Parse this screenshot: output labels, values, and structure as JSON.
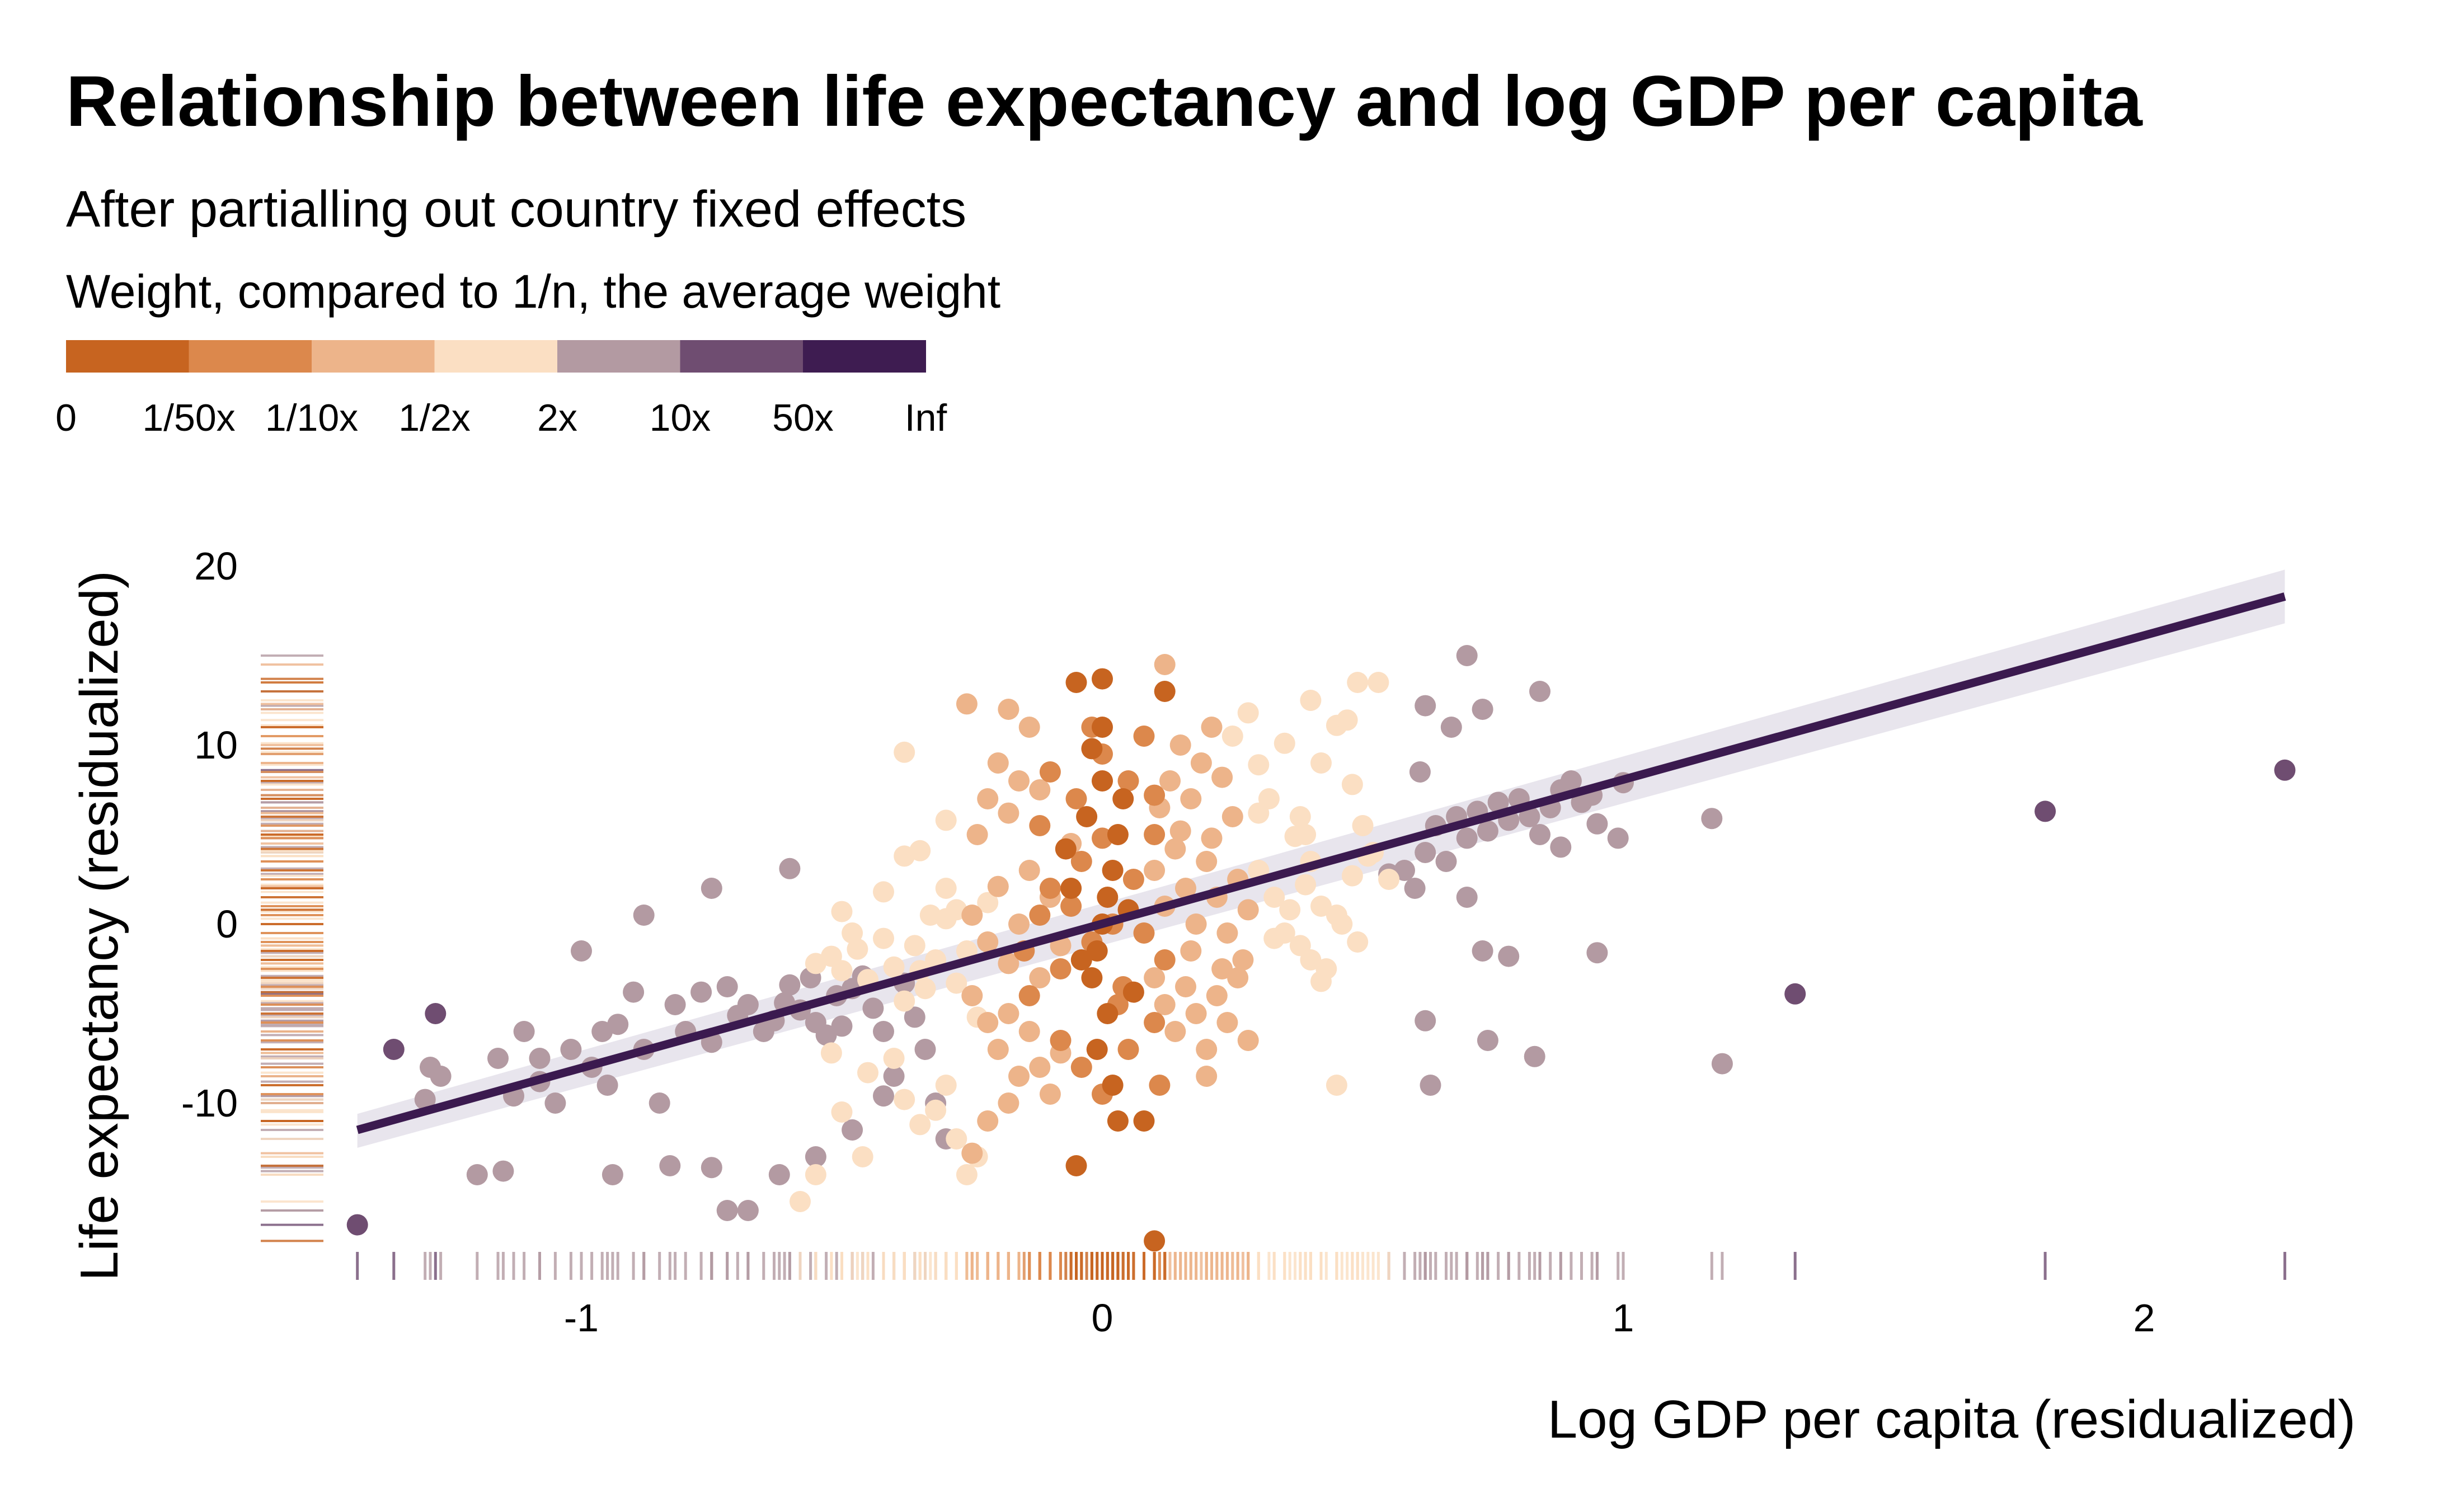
{
  "chart_data": {
    "type": "scatter",
    "title": "Relationship between life expectancy and log GDP per capita",
    "subtitle": "After partialling out country fixed effects",
    "xlabel": "Log GDP per capita (residualized)",
    "ylabel": "Life expectancy (residualized)",
    "xlim": [
      -1.45,
      2.28
    ],
    "ylim": [
      -18.3,
      20.0
    ],
    "x_ticks": [
      -1,
      0,
      1,
      2
    ],
    "x_tick_labels": [
      "-1",
      "0",
      "1",
      "2"
    ],
    "y_ticks": [
      -10,
      0,
      10,
      20
    ],
    "y_tick_labels": [
      "-10",
      "0",
      "10",
      "20"
    ],
    "grid": false,
    "fit_line": {
      "x": [
        -1.43,
        2.27
      ],
      "y": [
        -11.5,
        18.3
      ],
      "band_low": [
        -12.5,
        16.8
      ],
      "band_high": [
        -10.6,
        19.8
      ],
      "color": "#3b1a4f",
      "band_color": "#e4e0ea"
    },
    "legend": {
      "title": "Weight, compared to 1/n, the average weight",
      "labels": [
        "0",
        "1/50x",
        "1/10x",
        "1/2x",
        "2x",
        "10x",
        "50x",
        "Inf"
      ],
      "colors": [
        "#c76420",
        "#dc884c",
        "#edb48a",
        "#fbdfc3",
        "#b39aa2",
        "#6f4d71",
        "#3e1c51"
      ]
    },
    "points": [
      [
        -1.43,
        -16.8,
        5
      ],
      [
        -1.36,
        -7.0,
        5
      ],
      [
        -1.28,
        -5.0,
        5
      ],
      [
        1.33,
        -3.9,
        5
      ],
      [
        1.81,
        6.3,
        5
      ],
      [
        2.27,
        8.6,
        5
      ],
      [
        -1.3,
        -9.8,
        4
      ],
      [
        -1.29,
        -8.0,
        4
      ],
      [
        -1.27,
        -8.5,
        4
      ],
      [
        -1.2,
        -14.0,
        4
      ],
      [
        -1.16,
        -7.5,
        4
      ],
      [
        -1.13,
        -9.6,
        4
      ],
      [
        -1.11,
        -6.0,
        4
      ],
      [
        -1.08,
        -7.5,
        4
      ],
      [
        -1.05,
        -10.0,
        4
      ],
      [
        -1.02,
        -7.0,
        4
      ],
      [
        -1.0,
        -1.5,
        4
      ],
      [
        -0.98,
        -8.0,
        4
      ],
      [
        -0.96,
        -6.0,
        4
      ],
      [
        -0.93,
        -5.6,
        4
      ],
      [
        -0.9,
        -3.8,
        4
      ],
      [
        -0.88,
        -7.0,
        4
      ],
      [
        -0.85,
        -10.0,
        4
      ],
      [
        -0.82,
        -4.5,
        4
      ],
      [
        -0.8,
        -6.0,
        4
      ],
      [
        -0.77,
        -3.8,
        4
      ],
      [
        -0.75,
        -6.6,
        4
      ],
      [
        -0.72,
        -3.5,
        4
      ],
      [
        -0.7,
        -5.1,
        4
      ],
      [
        -0.68,
        -4.5,
        4
      ],
      [
        -0.65,
        -6.0,
        4
      ],
      [
        -0.63,
        -5.4,
        4
      ],
      [
        -0.61,
        -4.4,
        4
      ],
      [
        -0.6,
        -3.4,
        4
      ],
      [
        -0.58,
        -4.8,
        4
      ],
      [
        -0.56,
        -3.0,
        4
      ],
      [
        -0.55,
        -5.5,
        4
      ],
      [
        -0.53,
        -6.2,
        4
      ],
      [
        -0.51,
        -4.0,
        4
      ],
      [
        -0.5,
        -5.7,
        4
      ],
      [
        -0.48,
        -3.6,
        4
      ],
      [
        -0.46,
        -2.9,
        4
      ],
      [
        -0.44,
        -4.7,
        4
      ],
      [
        -0.42,
        -6.0,
        4
      ],
      [
        -0.4,
        -8.5,
        4
      ],
      [
        -0.38,
        -3.3,
        4
      ],
      [
        -0.36,
        -5.2,
        4
      ],
      [
        -0.34,
        -7.0,
        4
      ],
      [
        -0.32,
        -10.0,
        4
      ],
      [
        -0.3,
        -12.0,
        4
      ],
      [
        -0.75,
        -13.6,
        4
      ],
      [
        -0.72,
        -16.0,
        4
      ],
      [
        -0.68,
        -16.0,
        4
      ],
      [
        -0.62,
        -14.0,
        4
      ],
      [
        -0.55,
        -13.0,
        4
      ],
      [
        -0.48,
        -11.5,
        4
      ],
      [
        -0.42,
        -9.6,
        4
      ],
      [
        -0.6,
        3.1,
        4
      ],
      [
        -0.75,
        2.0,
        4
      ],
      [
        -0.88,
        0.5,
        4
      ],
      [
        -1.15,
        -13.8,
        4
      ],
      [
        -0.94,
        -14.0,
        4
      ],
      [
        -0.83,
        -13.5,
        4
      ],
      [
        -1.08,
        -8.8,
        4
      ],
      [
        -0.95,
        -9.0,
        4
      ],
      [
        0.58,
        3.0,
        4
      ],
      [
        0.6,
        2.0,
        4
      ],
      [
        0.62,
        4.0,
        4
      ],
      [
        0.64,
        5.5,
        4
      ],
      [
        0.66,
        3.5,
        4
      ],
      [
        0.68,
        6.0,
        4
      ],
      [
        0.7,
        4.8,
        4
      ],
      [
        0.72,
        6.3,
        4
      ],
      [
        0.74,
        5.2,
        4
      ],
      [
        0.76,
        6.8,
        4
      ],
      [
        0.78,
        5.8,
        4
      ],
      [
        0.8,
        7.0,
        4
      ],
      [
        0.82,
        6.0,
        4
      ],
      [
        0.84,
        5.0,
        4
      ],
      [
        0.86,
        6.5,
        4
      ],
      [
        0.88,
        7.5,
        4
      ],
      [
        0.9,
        8.0,
        4
      ],
      [
        0.92,
        6.8,
        4
      ],
      [
        0.94,
        7.2,
        4
      ],
      [
        0.7,
        15.0,
        4
      ],
      [
        0.62,
        12.2,
        4
      ],
      [
        0.67,
        11.0,
        4
      ],
      [
        0.73,
        12.0,
        4
      ],
      [
        0.84,
        13.0,
        4
      ],
      [
        0.61,
        8.5,
        4
      ],
      [
        0.55,
        2.8,
        4
      ],
      [
        0.7,
        1.5,
        4
      ],
      [
        0.73,
        -1.5,
        4
      ],
      [
        0.78,
        -1.8,
        4
      ],
      [
        0.95,
        -1.6,
        4
      ],
      [
        0.62,
        -5.4,
        4
      ],
      [
        0.74,
        -6.5,
        4
      ],
      [
        0.83,
        -7.4,
        4
      ],
      [
        0.63,
        -9.0,
        4
      ],
      [
        1.0,
        7.9,
        4
      ],
      [
        0.99,
        4.8,
        4
      ],
      [
        1.17,
        5.9,
        4
      ],
      [
        1.19,
        -7.8,
        4
      ],
      [
        0.95,
        5.6,
        4
      ],
      [
        0.88,
        4.3,
        4
      ],
      [
        -0.55,
        -2.2,
        3
      ],
      [
        -0.52,
        -1.8,
        3
      ],
      [
        -0.5,
        -2.6,
        3
      ],
      [
        -0.47,
        -1.4,
        3
      ],
      [
        -0.45,
        -3.1,
        3
      ],
      [
        -0.42,
        -0.8,
        3
      ],
      [
        -0.4,
        -2.4,
        3
      ],
      [
        -0.38,
        -4.3,
        3
      ],
      [
        -0.36,
        -1.2,
        3
      ],
      [
        -0.34,
        -3.6,
        3
      ],
      [
        -0.32,
        -2.0,
        3
      ],
      [
        -0.3,
        0.3,
        3
      ],
      [
        -0.28,
        -3.3,
        3
      ],
      [
        -0.26,
        -1.5,
        3
      ],
      [
        -0.24,
        -5.2,
        3
      ],
      [
        -0.22,
        1.2,
        3
      ],
      [
        -0.4,
        -7.5,
        3
      ],
      [
        -0.38,
        -9.8,
        3
      ],
      [
        -0.35,
        -11.2,
        3
      ],
      [
        -0.32,
        -10.4,
        3
      ],
      [
        -0.3,
        -9.0,
        3
      ],
      [
        -0.28,
        -12.0,
        3
      ],
      [
        -0.26,
        -14.0,
        3
      ],
      [
        -0.24,
        -13.0,
        3
      ],
      [
        -0.45,
        -8.3,
        3
      ],
      [
        -0.5,
        -10.5,
        3
      ],
      [
        -0.52,
        -7.2,
        3
      ],
      [
        -0.55,
        -14.0,
        3
      ],
      [
        -0.46,
        -13.0,
        3
      ],
      [
        -0.58,
        -15.5,
        3
      ],
      [
        -0.42,
        1.8,
        3
      ],
      [
        -0.38,
        3.8,
        3
      ],
      [
        -0.35,
        4.1,
        3
      ],
      [
        -0.3,
        2.0,
        3
      ],
      [
        -0.28,
        0.8,
        3
      ],
      [
        -0.38,
        9.6,
        3
      ],
      [
        -0.3,
        5.8,
        3
      ],
      [
        -0.5,
        0.7,
        3
      ],
      [
        -0.48,
        -0.5,
        3
      ],
      [
        0.3,
        8.9,
        3
      ],
      [
        0.35,
        10.1,
        3
      ],
      [
        0.32,
        7.0,
        3
      ],
      [
        0.38,
        6.0,
        3
      ],
      [
        0.4,
        3.5,
        3
      ],
      [
        0.42,
        9.0,
        3
      ],
      [
        0.45,
        11.1,
        3
      ],
      [
        0.48,
        7.8,
        3
      ],
      [
        0.5,
        5.5,
        3
      ],
      [
        0.52,
        4.0,
        3
      ],
      [
        0.55,
        2.5,
        3
      ],
      [
        0.3,
        3.0,
        3
      ],
      [
        0.33,
        1.5,
        3
      ],
      [
        0.36,
        0.8,
        3
      ],
      [
        0.39,
        2.2,
        3
      ],
      [
        0.42,
        1.0,
        3
      ],
      [
        0.45,
        0.5,
        3
      ],
      [
        0.48,
        2.7,
        3
      ],
      [
        0.51,
        3.8,
        3
      ],
      [
        0.35,
        -0.5,
        3
      ],
      [
        0.38,
        -1.2,
        3
      ],
      [
        0.4,
        -2.0,
        3
      ],
      [
        0.42,
        -3.2,
        3
      ],
      [
        0.46,
        0.0,
        3
      ],
      [
        0.49,
        -1.0,
        3
      ],
      [
        0.43,
        -2.5,
        3
      ],
      [
        0.37,
        4.9,
        3
      ],
      [
        0.4,
        12.5,
        3
      ],
      [
        0.49,
        13.5,
        3
      ],
      [
        0.53,
        13.5,
        3
      ],
      [
        0.47,
        11.4,
        3
      ],
      [
        0.45,
        -9.0,
        3
      ],
      [
        0.3,
        6.2,
        3
      ],
      [
        0.33,
        -0.8,
        3
      ],
      [
        0.25,
        10.5,
        3
      ],
      [
        0.28,
        11.8,
        3
      ],
      [
        -0.35,
        -2.6,
        3
      ],
      [
        -0.33,
        0.5,
        3
      ],
      [
        0.39,
        5.0,
        3
      ],
      [
        -0.25,
        0.5,
        2
      ],
      [
        -0.22,
        -1.0,
        2
      ],
      [
        -0.2,
        2.1,
        2
      ],
      [
        -0.18,
        -2.2,
        2
      ],
      [
        -0.16,
        0.0,
        2
      ],
      [
        -0.14,
        3.0,
        2
      ],
      [
        -0.12,
        -3.0,
        2
      ],
      [
        -0.1,
        1.5,
        2
      ],
      [
        -0.08,
        -1.2,
        2
      ],
      [
        -0.24,
        5.0,
        2
      ],
      [
        -0.22,
        7.0,
        2
      ],
      [
        -0.2,
        9.0,
        2
      ],
      [
        -0.18,
        6.2,
        2
      ],
      [
        -0.16,
        8.0,
        2
      ],
      [
        -0.14,
        11.0,
        2
      ],
      [
        -0.12,
        7.5,
        2
      ],
      [
        -0.26,
        12.3,
        2
      ],
      [
        -0.18,
        12.0,
        2
      ],
      [
        -0.25,
        -4.0,
        2
      ],
      [
        -0.22,
        -5.5,
        2
      ],
      [
        -0.2,
        -7.0,
        2
      ],
      [
        -0.18,
        -5.0,
        2
      ],
      [
        -0.16,
        -8.5,
        2
      ],
      [
        -0.14,
        -6.0,
        2
      ],
      [
        -0.12,
        -8.0,
        2
      ],
      [
        -0.1,
        -9.5,
        2
      ],
      [
        -0.08,
        -7.2,
        2
      ],
      [
        -0.25,
        -12.8,
        2
      ],
      [
        -0.22,
        -11.0,
        2
      ],
      [
        -0.18,
        -10.0,
        2
      ],
      [
        0.1,
        3.0,
        2
      ],
      [
        0.12,
        1.0,
        2
      ],
      [
        0.14,
        4.2,
        2
      ],
      [
        0.16,
        2.0,
        2
      ],
      [
        0.18,
        0.0,
        2
      ],
      [
        0.2,
        3.5,
        2
      ],
      [
        0.22,
        1.5,
        2
      ],
      [
        0.24,
        -0.5,
        2
      ],
      [
        0.26,
        2.5,
        2
      ],
      [
        0.28,
        0.8,
        2
      ],
      [
        0.11,
        6.5,
        2
      ],
      [
        0.13,
        8.0,
        2
      ],
      [
        0.15,
        10.0,
        2
      ],
      [
        0.17,
        7.0,
        2
      ],
      [
        0.19,
        9.0,
        2
      ],
      [
        0.21,
        11.0,
        2
      ],
      [
        0.23,
        8.2,
        2
      ],
      [
        0.12,
        14.5,
        2
      ],
      [
        0.1,
        -3.0,
        2
      ],
      [
        0.12,
        -4.5,
        2
      ],
      [
        0.14,
        -6.0,
        2
      ],
      [
        0.16,
        -3.5,
        2
      ],
      [
        0.18,
        -5.0,
        2
      ],
      [
        0.2,
        -7.0,
        2
      ],
      [
        0.22,
        -4.0,
        2
      ],
      [
        0.24,
        -5.5,
        2
      ],
      [
        0.26,
        -3.0,
        2
      ],
      [
        0.28,
        -6.5,
        2
      ],
      [
        0.2,
        -8.5,
        2
      ],
      [
        0.27,
        -2.0,
        2
      ],
      [
        0.15,
        5.2,
        2
      ],
      [
        0.21,
        4.8,
        2
      ],
      [
        0.25,
        6.0,
        2
      ],
      [
        0.17,
        -1.5,
        2
      ],
      [
        0.23,
        -2.5,
        2
      ],
      [
        -0.06,
        4.5,
        2
      ],
      [
        -0.15,
        -1.5,
        1
      ],
      [
        -0.12,
        0.5,
        1
      ],
      [
        -0.1,
        2.0,
        1
      ],
      [
        -0.08,
        -2.5,
        1
      ],
      [
        -0.06,
        1.0,
        1
      ],
      [
        -0.04,
        3.5,
        1
      ],
      [
        -0.02,
        -1.0,
        1
      ],
      [
        0.0,
        4.8,
        1
      ],
      [
        0.02,
        0.0,
        1
      ],
      [
        0.04,
        -3.5,
        1
      ],
      [
        0.06,
        2.5,
        1
      ],
      [
        0.08,
        -0.5,
        1
      ],
      [
        0.1,
        5.0,
        1
      ],
      [
        0.12,
        -2.0,
        1
      ],
      [
        -0.1,
        8.5,
        1
      ],
      [
        -0.05,
        7.0,
        1
      ],
      [
        0.0,
        9.5,
        1
      ],
      [
        0.05,
        8.0,
        1
      ],
      [
        0.1,
        7.2,
        1
      ],
      [
        -0.08,
        -6.5,
        1
      ],
      [
        -0.04,
        -8.0,
        1
      ],
      [
        0.0,
        -9.5,
        1
      ],
      [
        0.05,
        -7.0,
        1
      ],
      [
        0.1,
        -5.5,
        1
      ],
      [
        0.08,
        10.5,
        1
      ],
      [
        -0.12,
        5.5,
        1
      ],
      [
        0.11,
        -9.0,
        1
      ],
      [
        -0.02,
        11.0,
        1
      ],
      [
        0.03,
        -4.5,
        1
      ],
      [
        -0.14,
        -4.0,
        1
      ],
      [
        0.0,
        0.0,
        0
      ],
      [
        0.01,
        1.5,
        0
      ],
      [
        -0.01,
        -1.5,
        0
      ],
      [
        0.02,
        3.0,
        0
      ],
      [
        -0.02,
        -3.0,
        0
      ],
      [
        0.03,
        5.0,
        0
      ],
      [
        -0.03,
        6.0,
        0
      ],
      [
        0.0,
        8.0,
        0
      ],
      [
        0.01,
        -5.0,
        0
      ],
      [
        -0.01,
        -7.0,
        0
      ],
      [
        0.02,
        -9.0,
        0
      ],
      [
        0.0,
        11.0,
        0
      ],
      [
        -0.05,
        13.5,
        0
      ],
      [
        0.0,
        13.7,
        0
      ],
      [
        0.12,
        13.0,
        0
      ],
      [
        -0.05,
        -13.5,
        0
      ],
      [
        0.03,
        -11.0,
        0
      ],
      [
        0.1,
        -17.7,
        0
      ],
      [
        0.08,
        -11.0,
        0
      ],
      [
        -0.06,
        2.0,
        0
      ],
      [
        -0.04,
        -2.0,
        0
      ],
      [
        0.05,
        0.8,
        0
      ],
      [
        0.06,
        -3.8,
        0
      ],
      [
        -0.07,
        4.2,
        0
      ],
      [
        0.04,
        7.0,
        0
      ],
      [
        -0.02,
        9.8,
        0
      ]
    ]
  }
}
